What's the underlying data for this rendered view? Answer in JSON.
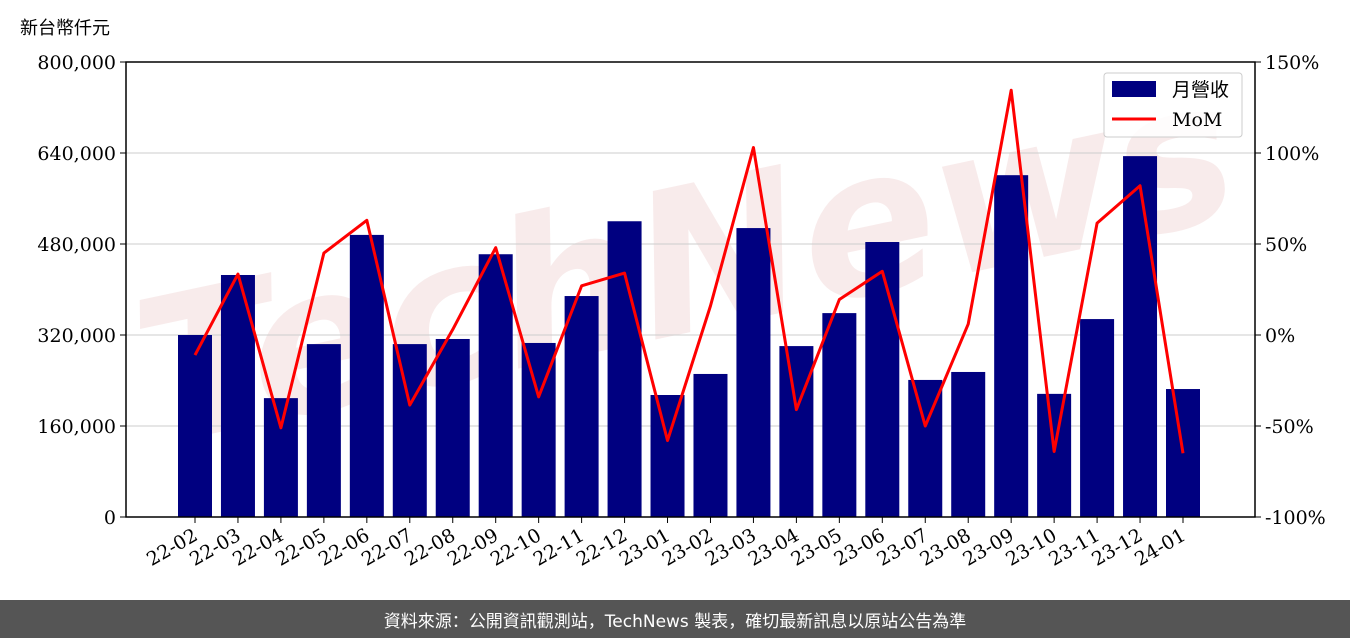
{
  "chart_data": {
    "type": "bar",
    "unit_label": "新台幣仟元",
    "categories": [
      "22-02",
      "22-03",
      "22-04",
      "22-05",
      "22-06",
      "22-07",
      "22-08",
      "22-09",
      "22-10",
      "22-11",
      "22-12",
      "23-01",
      "23-02",
      "23-03",
      "23-04",
      "23-05",
      "23-06",
      "23-07",
      "23-08",
      "23-09",
      "23-10",
      "23-11",
      "23-12",
      "24-01"
    ],
    "series": [
      {
        "name": "月營收",
        "type": "bar",
        "axis": "left",
        "color": "#000080",
        "values": [
          320000,
          425500,
          209000,
          304000,
          496000,
          304000,
          313000,
          462000,
          306000,
          388500,
          520000,
          214500,
          251500,
          508000,
          300500,
          358500,
          483500,
          241000,
          255000,
          601000,
          216500,
          348000,
          634500,
          225000
        ]
      },
      {
        "name": "MoM",
        "type": "line",
        "axis": "right",
        "color": "#ff0000",
        "values": [
          -11,
          33.5,
          -51,
          45,
          63,
          -38.5,
          3,
          48,
          -34,
          27,
          34,
          -58,
          16,
          103,
          -41,
          19.5,
          35,
          -50,
          6,
          134.5,
          -64,
          61.5,
          82,
          -65
        ]
      }
    ],
    "left_axis": {
      "ylim": [
        0,
        800000
      ],
      "ticks": [
        "0",
        "160,000",
        "320,000",
        "480,000",
        "640,000",
        "800,000"
      ],
      "values": [
        0,
        160000,
        320000,
        480000,
        640000,
        800000
      ]
    },
    "right_axis": {
      "ylim": [
        -100,
        150
      ],
      "ticks": [
        "-100%",
        "-50%",
        "0%",
        "50%",
        "100%",
        "150%"
      ],
      "values": [
        -100,
        -50,
        0,
        50,
        100,
        150
      ]
    },
    "grid": true,
    "legend": "top-right",
    "watermark": "TechNews"
  },
  "footer": {
    "source": "資料來源：公開資訊觀測站，TechNews 製表，確切最新訊息以原站公告為準"
  }
}
